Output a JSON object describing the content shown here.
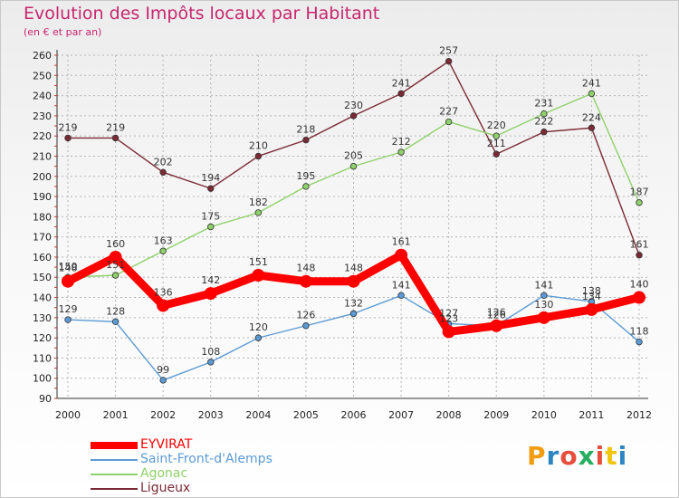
{
  "title": "Evolution des Impôts locaux par Habitant",
  "subtitle": "(en € et par an)",
  "brand": {
    "text": "Proxiti",
    "colors": [
      "#f39c12",
      "#2e86c1",
      "#e74c3c",
      "#27ae60",
      "#e74c3c",
      "#f1c40f",
      "#2e86c1"
    ]
  },
  "chart_data": {
    "type": "line",
    "title": "Evolution des Impôts locaux par Habitant",
    "subtitle": "(en € et par an)",
    "xlabel": "",
    "ylabel": "",
    "ylim": [
      90,
      260
    ],
    "ytick_step": 10,
    "grid": true,
    "legend_position": "bottom-left",
    "x": [
      "2000",
      "2001",
      "2002",
      "2003",
      "2004",
      "2005",
      "2006",
      "2007",
      "2008",
      "2009",
      "2010",
      "2011",
      "2012"
    ],
    "series": [
      {
        "name": "EYVIRAT",
        "color": "#ff0000",
        "values": [
          148,
          160,
          136,
          142,
          151,
          148,
          148,
          161,
          123,
          126,
          130,
          134,
          140
        ]
      },
      {
        "name": "Saint-Front-d'Alemps",
        "color": "#5b9bd5",
        "values": [
          129,
          128,
          99,
          108,
          120,
          126,
          132,
          141,
          127,
          126,
          141,
          138,
          118
        ]
      },
      {
        "name": "Agonac",
        "color": "#8fd16a",
        "values": [
          150,
          151,
          163,
          175,
          182,
          195,
          205,
          212,
          227,
          220,
          231,
          241,
          187
        ]
      },
      {
        "name": "Ligueux",
        "color": "#7b2a35",
        "values": [
          219,
          219,
          202,
          194,
          210,
          218,
          230,
          241,
          257,
          211,
          222,
          224,
          161
        ]
      }
    ]
  }
}
